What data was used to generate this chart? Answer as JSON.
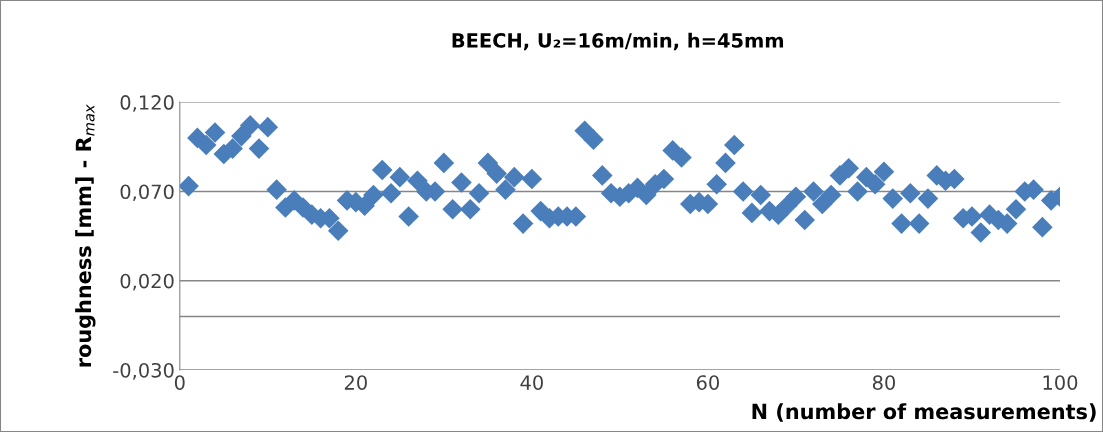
{
  "chart_data": {
    "type": "scatter",
    "title": "BEECH, U₂=16m/min, h=45mm",
    "xlabel": "N (number of measurements)",
    "ylabel": "roughness [mm] - R$_{max}$",
    "x": [
      1,
      2,
      3,
      4,
      5,
      6,
      7,
      8,
      9,
      10,
      11,
      12,
      13,
      14,
      15,
      16,
      17,
      18,
      19,
      20,
      21,
      22,
      23,
      24,
      25,
      26,
      27,
      28,
      29,
      30,
      31,
      32,
      33,
      34,
      35,
      36,
      37,
      38,
      39,
      40,
      41,
      42,
      43,
      44,
      45,
      46,
      47,
      48,
      49,
      50,
      51,
      52,
      53,
      54,
      55,
      56,
      57,
      58,
      59,
      60,
      61,
      62,
      63,
      64,
      65,
      66,
      67,
      68,
      69,
      70,
      71,
      72,
      73,
      74,
      75,
      76,
      77,
      78,
      79,
      80,
      81,
      82,
      83,
      84,
      85,
      86,
      87,
      88,
      89,
      90,
      91,
      92,
      93,
      94,
      95,
      96,
      97,
      98,
      99,
      100
    ],
    "series": [
      {
        "color": "#4a7ebb",
        "values": [
          0.073,
          0.1,
          0.096,
          0.103,
          0.091,
          0.094,
          0.101,
          0.107,
          0.094,
          0.106,
          0.071,
          0.061,
          0.065,
          0.061,
          0.057,
          0.055,
          0.055,
          0.048,
          0.065,
          0.064,
          0.062,
          0.068,
          0.082,
          0.069,
          0.078,
          0.056,
          0.076,
          0.07,
          0.07,
          0.086,
          0.06,
          0.075,
          0.06,
          0.069,
          0.086,
          0.08,
          0.071,
          0.078,
          0.052,
          0.077,
          0.059,
          0.055,
          0.056,
          0.056,
          0.056,
          0.104,
          0.099,
          0.079,
          0.069,
          0.067,
          0.069,
          0.072,
          0.068,
          0.074,
          0.077,
          0.093,
          0.089,
          0.063,
          0.064,
          0.063,
          0.074,
          0.086,
          0.096,
          0.07,
          0.058,
          0.068,
          0.059,
          0.057,
          0.062,
          0.067,
          0.054,
          0.07,
          0.063,
          0.068,
          0.079,
          0.083,
          0.07,
          0.078,
          0.074,
          0.081,
          0.066,
          0.052,
          0.069,
          0.052,
          0.066,
          0.079,
          0.076,
          0.077,
          0.055,
          0.056,
          0.047,
          0.057,
          0.054,
          0.052,
          0.06,
          0.07,
          0.071,
          0.05,
          0.065,
          0.067
        ]
      }
    ],
    "xlim": [
      0,
      100
    ],
    "xticks": [
      0,
      20,
      40,
      60,
      80,
      100
    ],
    "ylim": [
      -0.03,
      0.12
    ],
    "yticks": [
      {
        "value": -0.03,
        "label": "-0,030"
      },
      {
        "value": 0.02,
        "label": "0,020"
      },
      {
        "value": 0.07,
        "label": "0,070"
      },
      {
        "value": 0.12,
        "label": "0,120"
      }
    ],
    "ref_lines": [
      {
        "axis": "y",
        "value": 0,
        "color": "#868686"
      }
    ],
    "grid": "y",
    "marker": "diamond",
    "legend": false
  }
}
